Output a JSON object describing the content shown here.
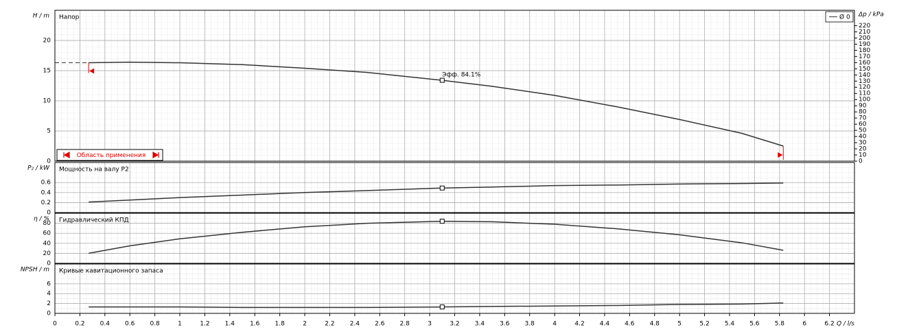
{
  "chart_data": [
    {
      "type": "line",
      "title": "Напор",
      "ylabel": "H / m",
      "y2label": "Δp / kPa",
      "ylim": [
        0,
        25
      ],
      "yticks": [
        0,
        5,
        10,
        15,
        20
      ],
      "y2lim": [
        0,
        245
      ],
      "y2ticks": [
        0,
        10,
        20,
        30,
        40,
        50,
        60,
        70,
        80,
        90,
        100,
        110,
        120,
        130,
        140,
        150,
        160,
        170,
        180,
        190,
        200,
        210,
        220
      ],
      "x": [
        0.27,
        0.6,
        1,
        1.5,
        2,
        2.5,
        3.1,
        3.5,
        4,
        4.5,
        5,
        5.5,
        5.83
      ],
      "series": [
        {
          "name": "Ø 0",
          "color": "#333333",
          "values": [
            16.3,
            16.4,
            16.3,
            16.0,
            15.4,
            14.7,
            13.4,
            12.4,
            10.9,
            9.0,
            6.9,
            4.6,
            2.5
          ]
        },
        {
          "color": "#333333",
          "dashed": true,
          "x": [
            0,
            0.27
          ],
          "values": [
            16.3,
            16.3
          ]
        }
      ],
      "legend": "top-right",
      "point": {
        "x": 3.1,
        "y": 13.4,
        "label": "Эфф. 84.1%"
      },
      "range": {
        "x": [
          0.27,
          5.83
        ],
        "label": "Область применения",
        "color": "#e00000"
      }
    },
    {
      "type": "line",
      "title": "Мощность на валу P2",
      "ylabel": "P₂ / kW",
      "ylim": [
        0,
        1
      ],
      "yticks": [
        0,
        0.2,
        0.4,
        0.6
      ],
      "x": [
        0.27,
        0.6,
        1,
        1.5,
        2,
        2.5,
        3.1,
        3.5,
        4,
        4.5,
        5,
        5.5,
        5.83
      ],
      "series": [
        {
          "color": "#333333",
          "values": [
            0.21,
            0.25,
            0.3,
            0.35,
            0.4,
            0.44,
            0.49,
            0.51,
            0.54,
            0.55,
            0.57,
            0.58,
            0.59
          ]
        }
      ],
      "point": {
        "x": 3.1,
        "y": 0.49
      }
    },
    {
      "type": "line",
      "title": "Гидравлический КПД",
      "ylabel": "η / %",
      "ylim": [
        0,
        100
      ],
      "yticks": [
        0,
        20,
        40,
        60,
        80
      ],
      "x": [
        0.27,
        0.6,
        1,
        1.5,
        2,
        2.5,
        3.1,
        3.5,
        4,
        4.5,
        5,
        5.5,
        5.83
      ],
      "series": [
        {
          "color": "#333333",
          "values": [
            20,
            35,
            49,
            62,
            73,
            80,
            84.1,
            83,
            78,
            69,
            57,
            41,
            26
          ]
        }
      ],
      "point": {
        "x": 3.1,
        "y": 84.1
      }
    },
    {
      "type": "line",
      "title": "Кривые кавитационного запаса",
      "ylabel": "NPSH / m",
      "xlabel": "Q / l/s",
      "ylim": [
        0,
        10
      ],
      "yticks": [
        0,
        2,
        4,
        6
      ],
      "xlim": [
        0,
        6.4
      ],
      "xticks": [
        0,
        0.2,
        0.4,
        0.6,
        0.8,
        1,
        1.2,
        1.4,
        1.6,
        1.8,
        2,
        2.2,
        2.4,
        2.6,
        2.8,
        3,
        3.2,
        3.4,
        3.6,
        3.8,
        4,
        4.2,
        4.4,
        4.6,
        4.8,
        5,
        5.2,
        5.4,
        5.6,
        5.8,
        6,
        6.2
      ],
      "x": [
        0.27,
        0.6,
        1,
        1.5,
        2,
        2.5,
        3.1,
        3.5,
        4,
        4.5,
        5,
        5.5,
        5.83
      ],
      "series": [
        {
          "color": "#333333",
          "values": [
            1.3,
            1.3,
            1.3,
            1.2,
            1.2,
            1.2,
            1.3,
            1.4,
            1.5,
            1.6,
            1.8,
            1.9,
            2.1
          ]
        }
      ],
      "point": {
        "x": 3.1,
        "y": 1.3
      }
    }
  ]
}
